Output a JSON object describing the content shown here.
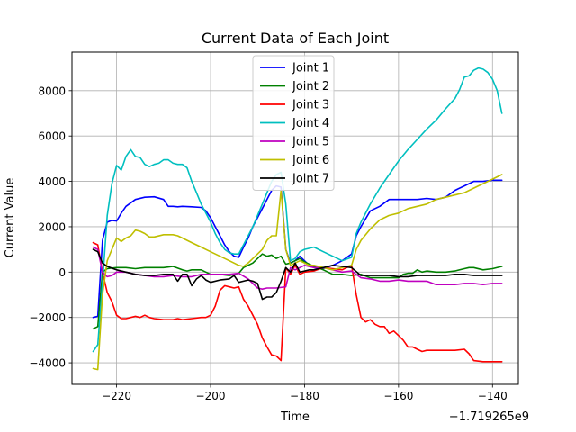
{
  "chart_data": {
    "type": "line",
    "title": "Current Data of Each Joint",
    "xlabel": "Time",
    "ylabel": "Current Value",
    "x_offset_label": "−1.719265e9",
    "xlim": [
      -229.5,
      -134.5
    ],
    "ylim": [
      -4950,
      9700
    ],
    "x_ticks": [
      -220,
      -200,
      -180,
      -160,
      -140
    ],
    "x_tick_labels": [
      "−220",
      "−200",
      "−180",
      "−160",
      "−140"
    ],
    "y_ticks": [
      -4000,
      -2000,
      0,
      2000,
      4000,
      6000,
      8000
    ],
    "y_tick_labels": [
      "−4000",
      "−2000",
      "0",
      "2000",
      "4000",
      "6000",
      "8000"
    ],
    "grid": true,
    "legend_position": "upper-center",
    "series": [
      {
        "name": "Joint 1",
        "color": "#0000ff",
        "x": [
          -225,
          -224,
          -223,
          -222,
          -221,
          -220,
          -219,
          -218,
          -216,
          -214,
          -212,
          -210,
          -209,
          -208,
          -207,
          -206,
          -204,
          -202,
          -201,
          -200,
          -199,
          -198,
          -197,
          -196,
          -195,
          -194,
          -193,
          -192,
          -191,
          -189,
          -187,
          -186,
          -185,
          -184,
          -183,
          -182,
          -181,
          -180,
          -179,
          -178,
          -176,
          -174,
          -172,
          -170,
          -169,
          -168,
          -166,
          -164,
          -162,
          -160,
          -159,
          -158,
          -156,
          -154,
          -152,
          -150,
          -148,
          -146,
          -144,
          -142,
          -140,
          -138
        ],
        "y": [
          -2000,
          -1950,
          1400,
          2200,
          2280,
          2250,
          2600,
          2900,
          3200,
          3300,
          3320,
          3200,
          2900,
          2900,
          2880,
          2900,
          2880,
          2850,
          2700,
          2400,
          2000,
          1600,
          1200,
          900,
          700,
          650,
          1100,
          1500,
          2000,
          2800,
          3600,
          3800,
          3750,
          1000,
          400,
          500,
          700,
          500,
          300,
          200,
          150,
          300,
          500,
          800,
          1600,
          2000,
          2700,
          2900,
          3200,
          3200,
          3200,
          3200,
          3200,
          3250,
          3200,
          3300,
          3600,
          3800,
          4000,
          4000,
          4050,
          4050
        ]
      },
      {
        "name": "Joint 2",
        "color": "#008000",
        "x": [
          -225,
          -224,
          -223,
          -222,
          -220,
          -218,
          -216,
          -214,
          -212,
          -210,
          -208,
          -206,
          -205,
          -204,
          -202,
          -200,
          -198,
          -196,
          -194,
          -193,
          -191,
          -189,
          -188,
          -187,
          -186,
          -185,
          -184,
          -183,
          -182,
          -181,
          -180,
          -178,
          -176,
          -174,
          -172,
          -170,
          -168,
          -166,
          -164,
          -162,
          -160,
          -159,
          -158,
          -157,
          -156,
          -155,
          -154,
          -152,
          -150,
          -148,
          -146,
          -145,
          -144,
          -142,
          -140,
          -138
        ],
        "y": [
          -2500,
          -2400,
          0,
          150,
          200,
          200,
          150,
          200,
          200,
          200,
          250,
          100,
          50,
          100,
          100,
          -100,
          -100,
          -150,
          -50,
          200,
          400,
          800,
          700,
          750,
          600,
          700,
          350,
          400,
          500,
          600,
          450,
          250,
          100,
          -100,
          -100,
          -150,
          -100,
          -250,
          -250,
          -250,
          -250,
          -100,
          -50,
          -50,
          100,
          0,
          50,
          0,
          0,
          50,
          150,
          200,
          200,
          100,
          150,
          250
        ]
      },
      {
        "name": "Joint 3",
        "color": "#ff0000",
        "x": [
          -225,
          -224,
          -223,
          -222,
          -221,
          -220,
          -219,
          -218,
          -217,
          -216,
          -215,
          -214,
          -213,
          -212,
          -210,
          -208,
          -207,
          -206,
          -204,
          -202,
          -201,
          -200,
          -199,
          -198,
          -197,
          -196,
          -195,
          -194,
          -193,
          -192,
          -191,
          -190,
          -189,
          -188,
          -187,
          -186,
          -185,
          -184,
          -183,
          -182,
          -181,
          -180,
          -178,
          -176,
          -174,
          -172,
          -170,
          -169,
          -168,
          -167,
          -166,
          -165,
          -164,
          -163,
          -162,
          -161,
          -160,
          -159,
          -158,
          -157,
          -156,
          -155,
          -154,
          -152,
          -150,
          -148,
          -146,
          -145,
          -144,
          -142,
          -140,
          -138
        ],
        "y": [
          1300,
          1200,
          0,
          -900,
          -1300,
          -1900,
          -2050,
          -2050,
          -2000,
          -1950,
          -2000,
          -1900,
          -2000,
          -2050,
          -2100,
          -2100,
          -2050,
          -2100,
          -2050,
          -2000,
          -2000,
          -1900,
          -1500,
          -800,
          -600,
          -650,
          -700,
          -650,
          -1200,
          -1500,
          -1900,
          -2300,
          -2900,
          -3300,
          -3650,
          -3700,
          -3900,
          200,
          -100,
          300,
          -100,
          0,
          50,
          200,
          150,
          100,
          300,
          -1000,
          -2000,
          -2200,
          -2100,
          -2300,
          -2400,
          -2400,
          -2700,
          -2600,
          -2800,
          -3000,
          -3300,
          -3300,
          -3400,
          -3500,
          -3450,
          -3450,
          -3450,
          -3450,
          -3400,
          -3600,
          -3900,
          -3950,
          -3950,
          -3950
        ]
      },
      {
        "name": "Joint 4",
        "color": "#00bfbf",
        "x": [
          -225,
          -224,
          -223,
          -222,
          -221,
          -220,
          -219,
          -218,
          -217,
          -216,
          -215,
          -214,
          -213,
          -212,
          -211,
          -210,
          -209,
          -208,
          -207,
          -206,
          -205,
          -204,
          -203,
          -202,
          -201,
          -200,
          -199,
          -198,
          -197,
          -196,
          -195,
          -194,
          -193,
          -192,
          -191,
          -190,
          -189,
          -188,
          -187,
          -186,
          -185,
          -184,
          -183,
          -182,
          -181,
          -180,
          -179,
          -178,
          -176,
          -174,
          -172,
          -170,
          -169,
          -168,
          -166,
          -164,
          -162,
          -160,
          -158,
          -156,
          -154,
          -152,
          -150,
          -148,
          -147,
          -146,
          -145,
          -144,
          -143,
          -142,
          -141,
          -140,
          -139,
          -138
        ],
        "y": [
          -3500,
          -3200,
          -500,
          2500,
          3900,
          4700,
          4500,
          5100,
          5400,
          5100,
          5050,
          4750,
          4650,
          4750,
          4800,
          4950,
          4950,
          4800,
          4750,
          4750,
          4600,
          4000,
          3500,
          3000,
          2600,
          2200,
          1700,
          1300,
          1000,
          850,
          800,
          800,
          1200,
          1600,
          2000,
          2500,
          3000,
          3500,
          4000,
          4300,
          4400,
          3000,
          500,
          600,
          900,
          1000,
          1050,
          1100,
          900,
          700,
          500,
          650,
          1700,
          2200,
          3000,
          3700,
          4300,
          4900,
          5400,
          5850,
          6300,
          6700,
          7200,
          7650,
          8050,
          8600,
          8650,
          8900,
          9000,
          8950,
          8800,
          8500,
          8000,
          7000
        ]
      },
      {
        "name": "Joint 5",
        "color": "#bf00bf",
        "x": [
          -225,
          -224,
          -223,
          -222,
          -221,
          -220,
          -218,
          -216,
          -214,
          -212,
          -210,
          -208,
          -206,
          -204,
          -202,
          -200,
          -198,
          -196,
          -194,
          -192,
          -190,
          -189,
          -188,
          -186,
          -184,
          -183,
          -182,
          -181,
          -180,
          -178,
          -176,
          -174,
          -172,
          -170,
          -168,
          -166,
          -164,
          -162,
          -160,
          -158,
          -156,
          -154,
          -152,
          -150,
          -148,
          -146,
          -144,
          -142,
          -140,
          -138
        ],
        "y": [
          1100,
          1000,
          0,
          -200,
          -150,
          0,
          0,
          -100,
          -150,
          -200,
          -200,
          -150,
          -200,
          -200,
          -100,
          -100,
          -100,
          -100,
          -50,
          -300,
          -700,
          -750,
          -700,
          -700,
          -650,
          200,
          100,
          200,
          300,
          200,
          200,
          100,
          0,
          50,
          -250,
          -300,
          -400,
          -400,
          -350,
          -400,
          -400,
          -400,
          -550,
          -550,
          -550,
          -500,
          -500,
          -550,
          -500,
          -500
        ]
      },
      {
        "name": "Joint 6",
        "color": "#bfbf00",
        "x": [
          -225,
          -224,
          -223,
          -222,
          -221,
          -220,
          -219,
          -218,
          -217,
          -216,
          -215,
          -214,
          -213,
          -212,
          -210,
          -208,
          -207,
          -206,
          -204,
          -202,
          -200,
          -198,
          -196,
          -194,
          -193,
          -192,
          -191,
          -190,
          -189,
          -188,
          -187,
          -186,
          -185,
          -184,
          -183,
          -182,
          -181,
          -180,
          -179,
          -178,
          -176,
          -174,
          -172,
          -170,
          -169,
          -168,
          -166,
          -164,
          -162,
          -160,
          -158,
          -156,
          -154,
          -152,
          -150,
          -148,
          -146,
          -144,
          -142,
          -140,
          -138
        ],
        "y": [
          -4250,
          -4300,
          -1000,
          500,
          1000,
          1500,
          1350,
          1500,
          1600,
          1850,
          1800,
          1700,
          1550,
          1550,
          1650,
          1650,
          1600,
          1500,
          1300,
          1100,
          900,
          700,
          500,
          300,
          250,
          400,
          600,
          800,
          1000,
          1400,
          1600,
          1600,
          3600,
          1000,
          300,
          400,
          500,
          400,
          300,
          300,
          200,
          100,
          200,
          300,
          1000,
          1400,
          1900,
          2300,
          2500,
          2600,
          2800,
          2900,
          3000,
          3200,
          3300,
          3400,
          3500,
          3700,
          3900,
          4100,
          4300
        ]
      },
      {
        "name": "Joint 7",
        "color": "#000000",
        "x": [
          -225,
          -224,
          -223,
          -222,
          -220,
          -218,
          -216,
          -214,
          -212,
          -210,
          -208,
          -207,
          -206,
          -205,
          -204,
          -203,
          -202,
          -201,
          -200,
          -198,
          -196,
          -195,
          -194,
          -193,
          -192,
          -191,
          -190,
          -189,
          -188,
          -187,
          -186,
          -185,
          -184,
          -183,
          -182,
          -181,
          -180,
          -179,
          -178,
          -176,
          -174,
          -172,
          -170,
          -168,
          -166,
          -164,
          -162,
          -160,
          -158,
          -156,
          -154,
          -152,
          -150,
          -148,
          -146,
          -144,
          -142,
          -140,
          -138
        ],
        "y": [
          1000,
          900,
          400,
          250,
          100,
          0,
          -100,
          -150,
          -150,
          -100,
          -100,
          -400,
          -100,
          -100,
          -600,
          -300,
          -150,
          -350,
          -450,
          -350,
          -300,
          -150,
          -450,
          -400,
          -350,
          -400,
          -500,
          -1200,
          -1100,
          -1100,
          -900,
          -400,
          200,
          0,
          400,
          0,
          50,
          100,
          100,
          200,
          300,
          250,
          200,
          -150,
          -150,
          -150,
          -150,
          -200,
          -200,
          -150,
          -150,
          -150,
          -150,
          -100,
          -100,
          -150,
          -150,
          -150,
          -150
        ]
      }
    ]
  }
}
